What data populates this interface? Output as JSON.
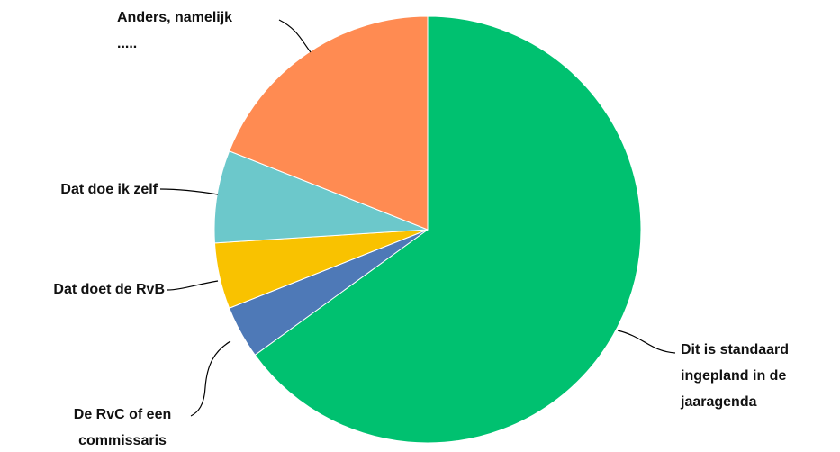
{
  "chart_data": {
    "type": "pie",
    "slices": [
      {
        "label": "Dit is standaard ingepland in de jaaragenda",
        "lines": [
          "Dit is standaard",
          "ingepland in de",
          "jaaragenda"
        ],
        "value": 65,
        "color": "#00C170"
      },
      {
        "label": "De RvC of een commissaris",
        "lines": [
          "De RvC of een",
          "commissaris"
        ],
        "value": 4,
        "color": "#4E79B7"
      },
      {
        "label": "Dat doet de RvB",
        "lines": [
          "Dat doet de RvB"
        ],
        "value": 5,
        "color": "#F9C200"
      },
      {
        "label": "Dat doe ik zelf",
        "lines": [
          "Dat doe ik zelf"
        ],
        "value": 7,
        "color": "#6CC8CB"
      },
      {
        "label": "Anders, namelijk .....",
        "lines": [
          "Anders, namelijk",
          "....."
        ],
        "value": 19,
        "color": "#FF8B52"
      }
    ]
  }
}
